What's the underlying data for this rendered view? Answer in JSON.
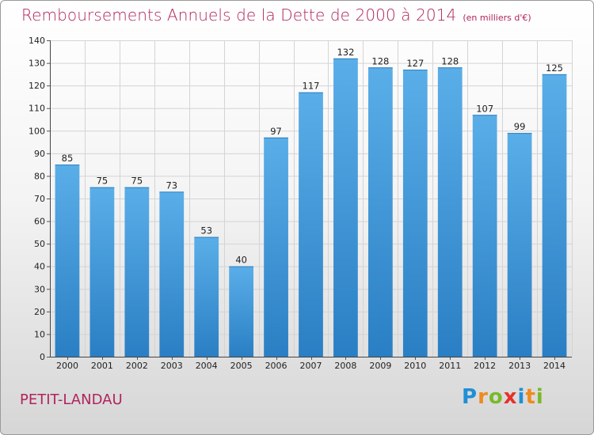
{
  "chart_data": {
    "type": "bar",
    "title": "Remboursements Annuels de la Dette de 2000 à 2014",
    "subtitle": "(en milliers d'€)",
    "categories": [
      "2000",
      "2001",
      "2002",
      "2003",
      "2004",
      "2005",
      "2006",
      "2007",
      "2008",
      "2009",
      "2010",
      "2011",
      "2012",
      "2013",
      "2014"
    ],
    "values": [
      85,
      75,
      75,
      73,
      53,
      40,
      97,
      117,
      132,
      128,
      127,
      128,
      107,
      99,
      125
    ],
    "ylim": [
      0,
      140
    ],
    "yticks": [
      0,
      10,
      20,
      30,
      40,
      50,
      60,
      70,
      80,
      90,
      100,
      110,
      120,
      130,
      140
    ],
    "xlabel": "",
    "ylabel": "",
    "grid": true
  },
  "commune": "PETIT-LANDAU",
  "logo": {
    "letters": [
      "P",
      "r",
      "o",
      "x",
      "i",
      "t",
      "i"
    ],
    "colors": [
      "#1f8fd6",
      "#f08a1c",
      "#7ab929",
      "#e8302a",
      "#1f8fd6",
      "#f08a1c",
      "#7ab929"
    ]
  },
  "colors": {
    "bar_top": "#5aaee8",
    "bar_bottom": "#2a7fc4",
    "title": "#b0245c",
    "grid": "#d4d4d4"
  }
}
